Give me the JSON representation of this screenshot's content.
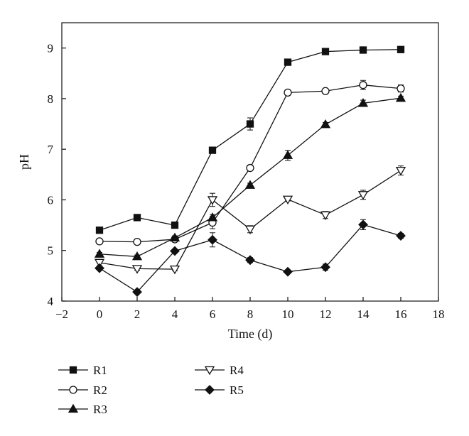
{
  "chart_data": {
    "type": "line",
    "title": "",
    "xlabel": "Time (d)",
    "ylabel": "pH",
    "xlim": [
      -2,
      18
    ],
    "ylim": [
      4,
      9.5
    ],
    "xticks": [
      -2,
      0,
      2,
      4,
      6,
      8,
      10,
      12,
      14,
      16,
      18
    ],
    "yticks": [
      4,
      5,
      6,
      7,
      8,
      9
    ],
    "x": [
      0,
      2,
      4,
      6,
      8,
      10,
      12,
      14,
      16
    ],
    "grid": false,
    "legend_position": "bottom-left",
    "line_color": "#111111",
    "series": [
      {
        "name": "R1",
        "marker": "square-filled",
        "values": [
          5.4,
          5.65,
          5.5,
          6.98,
          7.5,
          8.72,
          8.93,
          8.96,
          8.97
        ],
        "errors": [
          0.03,
          0.03,
          0.03,
          0.03,
          0.12,
          0.06,
          0.03,
          0.03,
          0.03
        ]
      },
      {
        "name": "R2",
        "marker": "circle-open",
        "values": [
          5.18,
          5.17,
          5.22,
          5.55,
          6.63,
          8.12,
          8.15,
          8.27,
          8.2
        ],
        "errors": [
          0.03,
          0.03,
          0.03,
          0.12,
          0.03,
          0.03,
          0.03,
          0.09,
          0.07
        ]
      },
      {
        "name": "R3",
        "marker": "triangle-up-filled",
        "values": [
          4.93,
          4.88,
          5.25,
          5.65,
          6.29,
          6.88,
          7.49,
          7.91,
          8.01
        ],
        "errors": [
          0.03,
          0.03,
          0.04,
          0.06,
          0.04,
          0.1,
          0.04,
          0.06,
          0.04
        ]
      },
      {
        "name": "R4",
        "marker": "triangle-down-open",
        "values": [
          4.76,
          4.64,
          4.63,
          6.0,
          5.42,
          6.01,
          5.7,
          6.1,
          6.58
        ],
        "errors": [
          0.06,
          0.03,
          0.03,
          0.13,
          0.07,
          0.03,
          0.07,
          0.09,
          0.09
        ]
      },
      {
        "name": "R5",
        "marker": "diamond-filled",
        "values": [
          4.65,
          4.18,
          4.99,
          5.21,
          4.81,
          4.58,
          4.67,
          5.51,
          5.29
        ],
        "errors": [
          0.03,
          0.03,
          0.03,
          0.14,
          0.05,
          0.03,
          0.06,
          0.1,
          0.05
        ]
      }
    ]
  }
}
